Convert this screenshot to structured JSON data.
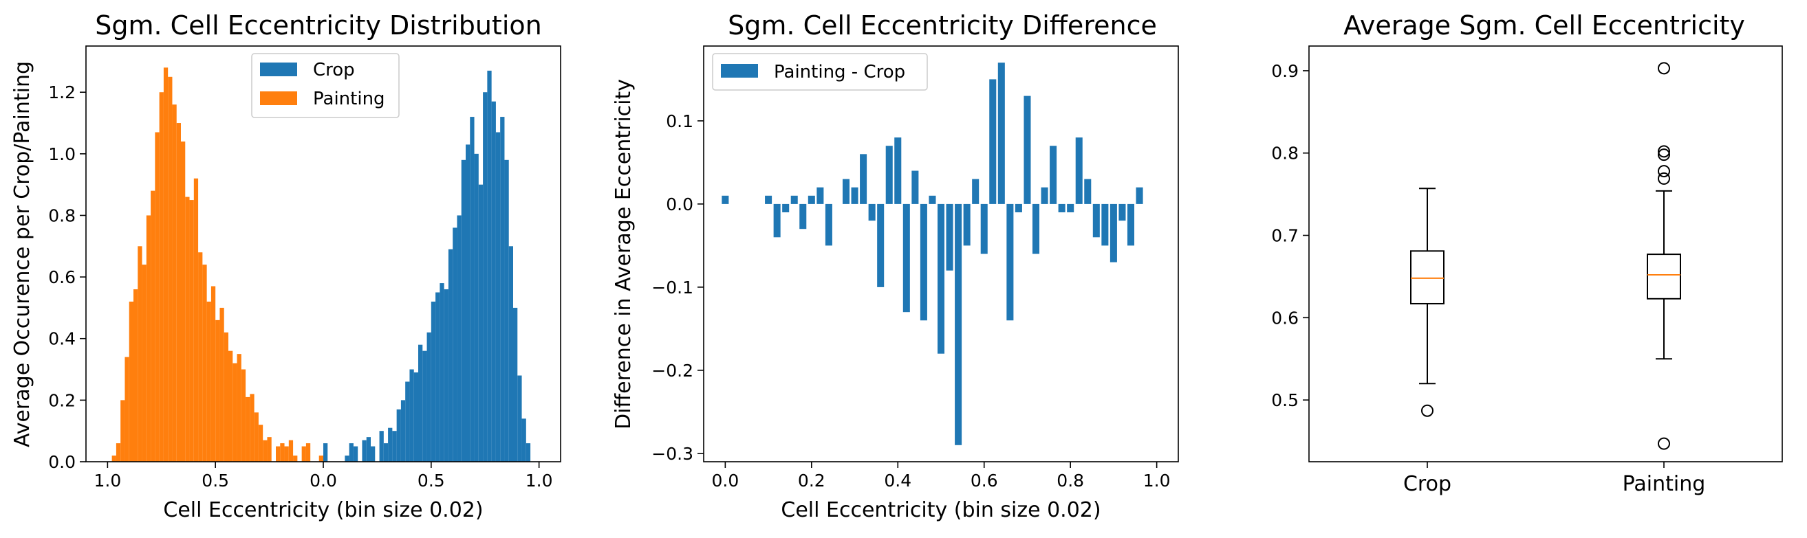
{
  "chart_data": [
    {
      "type": "bar",
      "title": "Sgm. Cell Eccentricity Distribution",
      "xlabel": "Cell Eccentricity (bin size 0.02)",
      "ylabel": "Average Occurence per Crop/Painting",
      "xlim": [
        -1.1,
        1.1
      ],
      "ylim": [
        0,
        1.35
      ],
      "xticks": [
        -1.0,
        -0.5,
        0.0,
        0.5,
        1.0
      ],
      "xtick_labels": [
        "1.0",
        "0.5",
        "0.0",
        "0.5",
        "1.0"
      ],
      "yticks": [
        0.0,
        0.2,
        0.4,
        0.6,
        0.8,
        1.0,
        1.2
      ],
      "ytick_labels": [
        "0.0",
        "0.2",
        "0.4",
        "0.6",
        "0.8",
        "1.0",
        "1.2"
      ],
      "legend": {
        "loc": "upper center",
        "entries": [
          "Crop",
          "Painting"
        ]
      },
      "bin_width": 0.02,
      "series": [
        {
          "name": "Crop",
          "color": "#1f77b4",
          "x": [
            0.0,
            0.02,
            0.04,
            0.06,
            0.08,
            0.1,
            0.12,
            0.14,
            0.16,
            0.18,
            0.2,
            0.22,
            0.24,
            0.26,
            0.28,
            0.3,
            0.32,
            0.34,
            0.36,
            0.38,
            0.4,
            0.42,
            0.44,
            0.46,
            0.48,
            0.5,
            0.52,
            0.54,
            0.56,
            0.58,
            0.6,
            0.62,
            0.64,
            0.66,
            0.68,
            0.7,
            0.72,
            0.74,
            0.76,
            0.78,
            0.8,
            0.82,
            0.84,
            0.86,
            0.88,
            0.9,
            0.92,
            0.94
          ],
          "values": [
            0.06,
            0.0,
            0.0,
            0.0,
            0.0,
            0.02,
            0.06,
            0.05,
            0.0,
            0.07,
            0.08,
            0.05,
            0.0,
            0.1,
            0.06,
            0.11,
            0.1,
            0.17,
            0.2,
            0.26,
            0.3,
            0.29,
            0.38,
            0.36,
            0.42,
            0.52,
            0.55,
            0.58,
            0.56,
            0.69,
            0.76,
            0.8,
            0.98,
            1.03,
            1.12,
            1.0,
            0.9,
            1.2,
            1.27,
            1.17,
            1.07,
            1.12,
            0.98,
            0.7,
            0.5,
            0.28,
            0.14,
            0.06
          ]
        },
        {
          "name": "Painting",
          "color": "#ff7f0e",
          "x": [
            -0.02,
            -0.04,
            -0.06,
            -0.08,
            -0.1,
            -0.12,
            -0.14,
            -0.16,
            -0.18,
            -0.2,
            -0.22,
            -0.24,
            -0.26,
            -0.28,
            -0.3,
            -0.32,
            -0.34,
            -0.36,
            -0.38,
            -0.4,
            -0.42,
            -0.44,
            -0.46,
            -0.48,
            -0.5,
            -0.52,
            -0.54,
            -0.56,
            -0.58,
            -0.6,
            -0.62,
            -0.64,
            -0.66,
            -0.68,
            -0.7,
            -0.72,
            -0.74,
            -0.76,
            -0.78,
            -0.8,
            -0.82,
            -0.84,
            -0.86,
            -0.88,
            -0.9,
            -0.92,
            -0.94,
            -0.96,
            -0.98
          ],
          "values": [
            0.02,
            0.0,
            0.0,
            0.06,
            0.05,
            0.0,
            0.02,
            0.07,
            0.05,
            0.06,
            0.05,
            0.0,
            0.08,
            0.07,
            0.12,
            0.16,
            0.22,
            0.21,
            0.3,
            0.35,
            0.32,
            0.36,
            0.42,
            0.5,
            0.46,
            0.57,
            0.52,
            0.64,
            0.68,
            0.92,
            0.85,
            0.86,
            1.04,
            1.1,
            1.16,
            1.25,
            1.28,
            1.2,
            1.07,
            0.88,
            0.8,
            0.64,
            0.7,
            0.56,
            0.52,
            0.34,
            0.2,
            0.06,
            0.02
          ]
        }
      ]
    },
    {
      "type": "bar",
      "title": "Sgm. Cell Eccentricity Difference",
      "xlabel": "Cell Eccentricity (bin size 0.02)",
      "ylabel": "Difference in Average Eccentricity",
      "xlim": [
        -0.05,
        1.05
      ],
      "ylim": [
        -0.31,
        0.19
      ],
      "xticks": [
        0.0,
        0.2,
        0.4,
        0.6,
        0.8,
        1.0
      ],
      "xtick_labels": [
        "0.0",
        "0.2",
        "0.4",
        "0.6",
        "0.8",
        "1.0"
      ],
      "yticks": [
        -0.3,
        -0.2,
        -0.1,
        0.0,
        0.1
      ],
      "ytick_labels": [
        "−0.3",
        "−0.2",
        "−0.1",
        "0.0",
        "0.1"
      ],
      "legend": {
        "loc": "upper left",
        "entries": [
          "Painting - Crop"
        ]
      },
      "bin_width": 0.016,
      "series": [
        {
          "name": "Painting - Crop",
          "color": "#1f77b4",
          "x": [
            0.0,
            0.02,
            0.04,
            0.06,
            0.08,
            0.1,
            0.12,
            0.14,
            0.16,
            0.18,
            0.2,
            0.22,
            0.24,
            0.26,
            0.28,
            0.3,
            0.32,
            0.34,
            0.36,
            0.38,
            0.4,
            0.42,
            0.44,
            0.46,
            0.48,
            0.5,
            0.52,
            0.54,
            0.56,
            0.58,
            0.6,
            0.62,
            0.64,
            0.66,
            0.68,
            0.7,
            0.72,
            0.74,
            0.76,
            0.78,
            0.8,
            0.82,
            0.84,
            0.86,
            0.88,
            0.9,
            0.92,
            0.94,
            0.96
          ],
          "values": [
            0.01,
            0.0,
            0.0,
            0.0,
            0.0,
            0.01,
            -0.04,
            -0.01,
            0.01,
            -0.03,
            0.01,
            0.02,
            -0.05,
            0.0,
            0.03,
            0.02,
            0.06,
            -0.02,
            -0.1,
            0.07,
            0.08,
            -0.13,
            0.04,
            -0.14,
            0.01,
            -0.18,
            -0.08,
            -0.29,
            -0.05,
            0.03,
            -0.06,
            0.15,
            0.17,
            -0.14,
            -0.01,
            0.13,
            -0.06,
            0.02,
            0.07,
            -0.01,
            -0.01,
            0.08,
            0.03,
            -0.04,
            -0.05,
            -0.07,
            -0.02,
            -0.05,
            0.02
          ]
        }
      ]
    },
    {
      "type": "box",
      "title": "Average Sgm. Cell Eccentricity",
      "categories": [
        "Crop",
        "Painting"
      ],
      "ylim": [
        0.425,
        0.93
      ],
      "yticks": [
        0.5,
        0.6,
        0.7,
        0.8,
        0.9
      ],
      "ytick_labels": [
        "0.5",
        "0.6",
        "0.7",
        "0.8",
        "0.9"
      ],
      "box_color": "#000000",
      "median_color": "#ff7f0e",
      "boxes": [
        {
          "name": "Crop",
          "whisker_low": 0.52,
          "q1": 0.617,
          "median": 0.648,
          "q3": 0.681,
          "whisker_high": 0.757,
          "outliers": [
            0.487
          ]
        },
        {
          "name": "Painting",
          "whisker_low": 0.55,
          "q1": 0.623,
          "median": 0.652,
          "q3": 0.677,
          "whisker_high": 0.754,
          "outliers": [
            0.447,
            0.769,
            0.778,
            0.798,
            0.802,
            0.903
          ]
        }
      ]
    }
  ]
}
